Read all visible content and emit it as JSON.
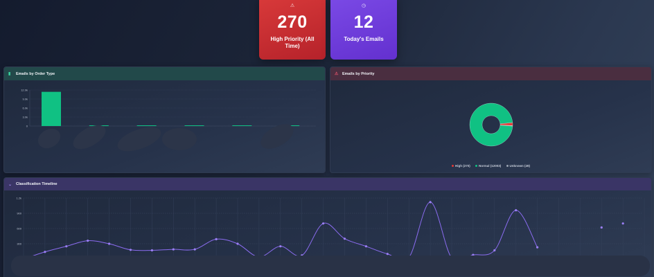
{
  "stats": [
    {
      "icon": "warning-icon",
      "icon_glyph": "⚠",
      "value": "270",
      "label": "High Priority (All Time)",
      "color": "#c92d31"
    },
    {
      "icon": "clock-icon",
      "icon_glyph": "◷",
      "value": "12",
      "label": "Today's Emails",
      "color": "#6e3ddb"
    }
  ],
  "order_panel": {
    "title": "Emails by Order Type",
    "icon": "document-icon",
    "icon_glyph": "▮",
    "accent": "#10c183"
  },
  "priority_panel": {
    "title": "Emails by Priority",
    "icon": "warning-icon",
    "icon_glyph": "⚠",
    "legend": [
      {
        "label": "High (270)",
        "color": "#e53935"
      },
      {
        "label": "Normal (12003)",
        "color": "#10c183"
      },
      {
        "label": "Unknown (49)",
        "color": "#9aa3b2"
      }
    ]
  },
  "timeline_panel": {
    "title": "Classification Timeline",
    "icon": "chevron-down-icon",
    "icon_glyph": "⌄",
    "accent": "#8b6cf0"
  },
  "chart_data": [
    {
      "type": "bar",
      "title": "Emails by Order Type",
      "categories": [
        "[redacted]",
        "[redacted]",
        "[redacted]",
        "[redacted]",
        "[redacted]",
        "[redacted]"
      ],
      "values": [
        11400,
        60,
        40,
        40,
        30,
        30
      ],
      "yticks": [
        "12.0k",
        "9.0k",
        "6.0k",
        "3.0k",
        "0"
      ],
      "ylim": [
        0,
        12000
      ],
      "grid": true,
      "color": "#10c183"
    },
    {
      "type": "pie",
      "title": "Emails by Priority",
      "donut": true,
      "categories": [
        "High",
        "Normal",
        "Unknown"
      ],
      "values": [
        270,
        12003,
        49
      ],
      "colors": [
        "#e53935",
        "#10c183",
        "#9aa3b2"
      ],
      "legend_position": "bottom"
    },
    {
      "type": "line",
      "title": "Classification Timeline",
      "x_index": [
        0,
        1,
        2,
        3,
        4,
        5,
        6,
        7,
        8,
        9,
        10,
        11,
        12,
        13,
        14,
        15,
        16,
        17,
        18,
        19,
        20,
        21,
        22,
        23,
        24,
        25,
        26,
        27,
        28,
        29
      ],
      "values": [
        0,
        140,
        250,
        360,
        300,
        180,
        170,
        190,
        190,
        390,
        300,
        40,
        250,
        70,
        700,
        400,
        250,
        100,
        30,
        1120,
        20,
        80,
        170,
        960,
        230,
        20,
        10,
        620,
        700,
        10
      ],
      "yticks": [
        "1.2k",
        "900",
        "600",
        "300",
        "0"
      ],
      "ylim": [
        0,
        1200
      ],
      "grid": true,
      "color": "#8b6cf0",
      "xlabels": "[redacted]"
    }
  ]
}
